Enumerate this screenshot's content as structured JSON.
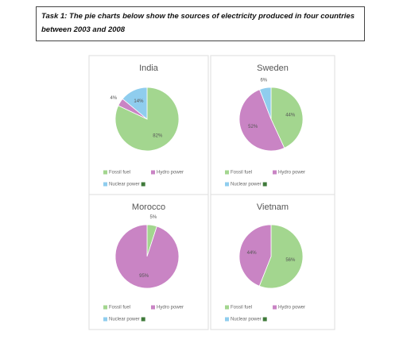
{
  "header": {
    "title": "Task 1: The pie charts below show the sources of electricity produced in four countries between 2003 and 2008"
  },
  "chart_data": [
    {
      "type": "pie",
      "title": "India",
      "categories": [
        "Fossil fuel",
        "Hydro power",
        "Nuclear power"
      ],
      "values": [
        82,
        4,
        14
      ],
      "value_labels": [
        "82%",
        "4%",
        "14%"
      ],
      "colors": [
        "#a3d68f",
        "#c984c4",
        "#8fcdee"
      ]
    },
    {
      "type": "pie",
      "title": "Sweden",
      "categories": [
        "Fossil fuel",
        "Hydro power",
        "Nuclear power"
      ],
      "values": [
        44,
        52,
        6
      ],
      "value_labels": [
        "44%",
        "52%",
        "6%"
      ],
      "colors": [
        "#a3d68f",
        "#c984c4",
        "#8fcdee"
      ]
    },
    {
      "type": "pie",
      "title": "Morocco",
      "categories": [
        "Fossil fuel",
        "Hydro power",
        "Nuclear power"
      ],
      "values": [
        5,
        95,
        null
      ],
      "value_labels": [
        "5%",
        "95%",
        null
      ],
      "colors": [
        "#a3d68f",
        "#c984c4",
        "#8fcdee"
      ]
    },
    {
      "type": "pie",
      "title": "Vietnam",
      "categories": [
        "Fossil fuel",
        "Hydro power",
        "Nuclear power"
      ],
      "values": [
        56,
        44,
        null
      ],
      "value_labels": [
        "56%",
        "44%",
        null
      ],
      "colors": [
        "#a3d68f",
        "#c984c4",
        "#8fcdee"
      ]
    }
  ]
}
